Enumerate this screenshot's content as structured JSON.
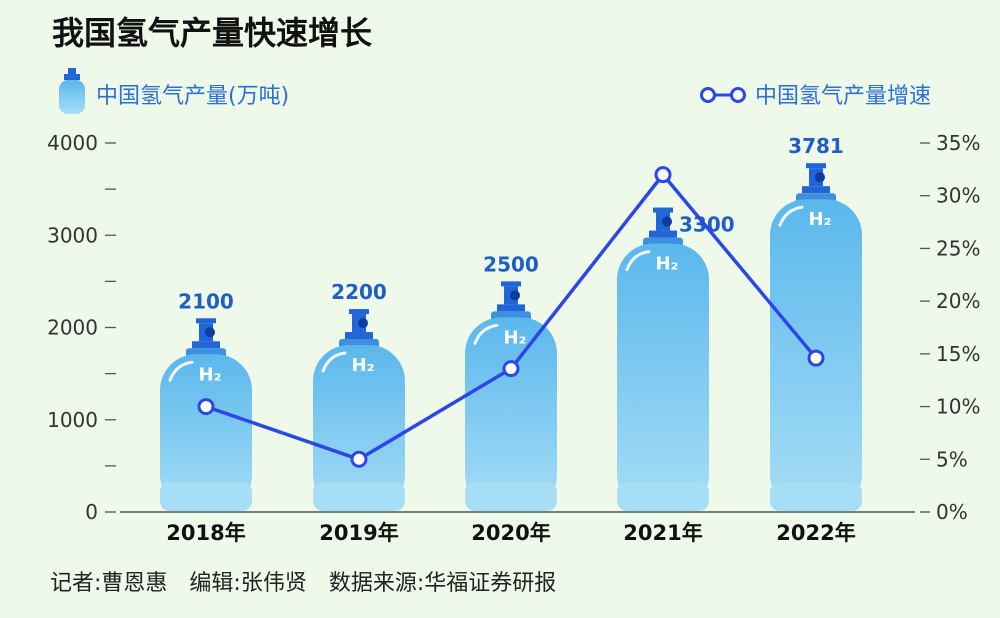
{
  "chart_data": {
    "type": "bar",
    "title": "我国氢气产量快速增长",
    "categories": [
      "2018年",
      "2019年",
      "2020年",
      "2021年",
      "2022年"
    ],
    "series": [
      {
        "name": "中国氢气产量(万吨)",
        "type": "bar",
        "axis": "left",
        "values": [
          2100,
          2200,
          2500,
          3300,
          3781
        ]
      },
      {
        "name": "中国氢气产量增速",
        "type": "line",
        "axis": "right",
        "values": [
          10,
          5,
          13.6,
          32,
          14.6
        ]
      }
    ],
    "value_labels": [
      "2100",
      "2200",
      "2500",
      "3300",
      "3781"
    ],
    "bar_mark_label": "H₂",
    "y_left": {
      "ylim": [
        0,
        4000
      ],
      "ticks": [
        "0",
        "1000",
        "2000",
        "3000",
        "4000"
      ]
    },
    "y_right": {
      "ylim": [
        0,
        35
      ],
      "ticks": [
        "0%",
        "5%",
        "10%",
        "15%",
        "20%",
        "25%",
        "30%",
        "35%"
      ]
    },
    "legend_position": "top",
    "colors": {
      "bar": "#6cc3ee",
      "line": "#2b47e6",
      "value_label": "#1f5fc4",
      "valve": "#2166d6"
    }
  },
  "credits": "记者:曹恩惠　编辑:张伟贤　数据来源:华福证券研报"
}
